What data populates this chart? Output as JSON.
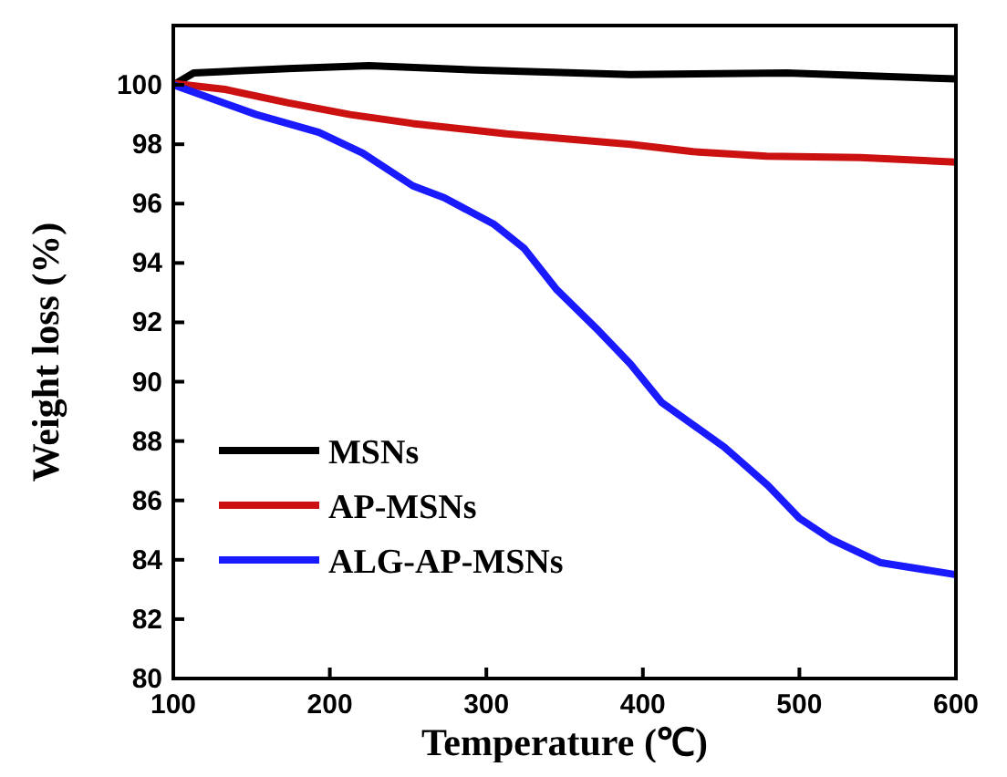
{
  "chart_data": {
    "type": "line",
    "xlabel": "Temperature (℃)",
    "ylabel": "Weight loss (%)",
    "xlim": [
      100,
      600
    ],
    "ylim": [
      80,
      102
    ],
    "xticks": [
      100,
      200,
      300,
      400,
      500,
      600
    ],
    "yticks": [
      80,
      82,
      84,
      86,
      88,
      90,
      92,
      94,
      96,
      98,
      100
    ],
    "legend": "bottom left",
    "grid": false,
    "line_style": "solid",
    "marker": "none",
    "series": [
      {
        "name": "MSNs",
        "color": "#000000",
        "x": [
          100,
          113,
          173,
          225,
          293,
          392,
          492,
          600
        ],
        "values": [
          100,
          100.4,
          100.55,
          100.65,
          100.5,
          100.35,
          100.4,
          100.2
        ]
      },
      {
        "name": "AP-MSNs",
        "color": "#cc1111",
        "x": [
          100,
          133,
          173,
          213,
          253,
          313,
          392,
          432,
          479,
          539,
          600
        ],
        "values": [
          100.05,
          99.85,
          99.4,
          99.0,
          98.7,
          98.35,
          98.0,
          97.75,
          97.6,
          97.55,
          97.4
        ]
      },
      {
        "name": "ALG-AP-MSNs",
        "color": "#1a1aff",
        "x": [
          100,
          153,
          193,
          221,
          253,
          273,
          305,
          324,
          345,
          372,
          392,
          412,
          452,
          480,
          500,
          520,
          552,
          600
        ],
        "values": [
          100,
          99.0,
          98.4,
          97.7,
          96.6,
          96.2,
          95.3,
          94.5,
          93.1,
          91.7,
          90.6,
          89.3,
          87.8,
          86.5,
          85.4,
          84.7,
          83.9,
          83.5
        ]
      }
    ]
  }
}
